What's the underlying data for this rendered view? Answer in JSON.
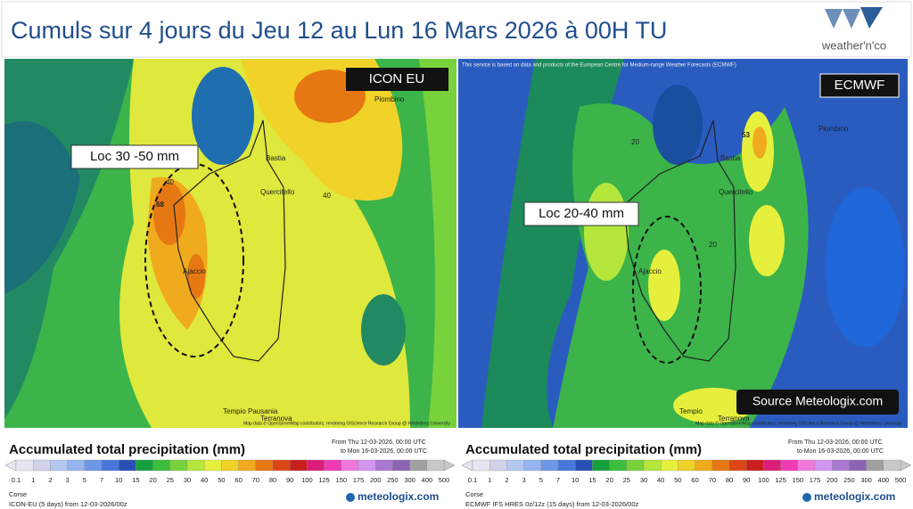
{
  "header": {
    "title": "Cumuls sur 4 jours du Jeu 12 au Lun 16 Mars 2026 à 00H TU",
    "logo": "weather'n'co"
  },
  "panels": [
    {
      "model": "ICON EU",
      "callout": "Loc 30 -50 mm",
      "places": [
        "Piombino",
        "Bastia",
        "Quercitello",
        "Ajaccio",
        "Tempio Pausania",
        "Terranova"
      ],
      "values_on_map": [
        "68",
        "40",
        "40"
      ],
      "attribution": "Map data © OpenStreetMap contributors, rendering GIScience Research Group @ Heidelberg University",
      "from": "From Thu 12-03-2026, 00:00 UTC",
      "to": "to Mon 16-03-2026, 00:00 UTC",
      "region": "Corse",
      "model_info": "ICON-EU (5 days) from 12-03-2026/00z",
      "brand": "meteologix.com"
    },
    {
      "model": "ECMWF",
      "callout": "Loc 20-40 mm",
      "places": [
        "Piombino",
        "Bastia",
        "Quercitello",
        "Ajaccio",
        "Tempio",
        "Terranova"
      ],
      "values_on_map": [
        "53",
        "20",
        "20"
      ],
      "notice": "This service is based on data and products of the European Centre for Medium-range Weather Forecasts (ECMWF)",
      "source": "Source Meteologix.com",
      "attribution": "Map data © OpenStreetMap contributors, rendering GIScience Research Group @ Heidelberg University",
      "from": "From Thu 12-03-2026, 00:00 UTC",
      "to": "to Mon 16-03-2026, 00:00 UTC",
      "region": "Corse",
      "model_info": "ECMWF IFS HRES 0z/12z (15 days) from 12-03-2026/00z",
      "brand": "meteologix.com"
    }
  ],
  "legend": {
    "title": "Accumulated total precipitation (mm)",
    "scale": [
      0.1,
      1,
      2,
      3,
      5,
      7,
      10,
      15,
      20,
      25,
      30,
      40,
      50,
      60,
      70,
      80,
      90,
      100,
      125,
      150,
      175,
      200,
      250,
      300,
      400,
      500
    ],
    "colors": [
      "#e6e6f0",
      "#d2d2ea",
      "#b4c8f0",
      "#96b4f0",
      "#6e96e6",
      "#4678dc",
      "#2850b4",
      "#14a03c",
      "#3cbe3c",
      "#78d23c",
      "#b4e63c",
      "#e6f03c",
      "#f0d228",
      "#f0aa1e",
      "#e67814",
      "#dc4614",
      "#c81e1e",
      "#dc1e78",
      "#f03cb4",
      "#f078dc",
      "#d296f0",
      "#aa78d2",
      "#8c64b4",
      "#a0a0a0",
      "#c8c8c8"
    ]
  }
}
